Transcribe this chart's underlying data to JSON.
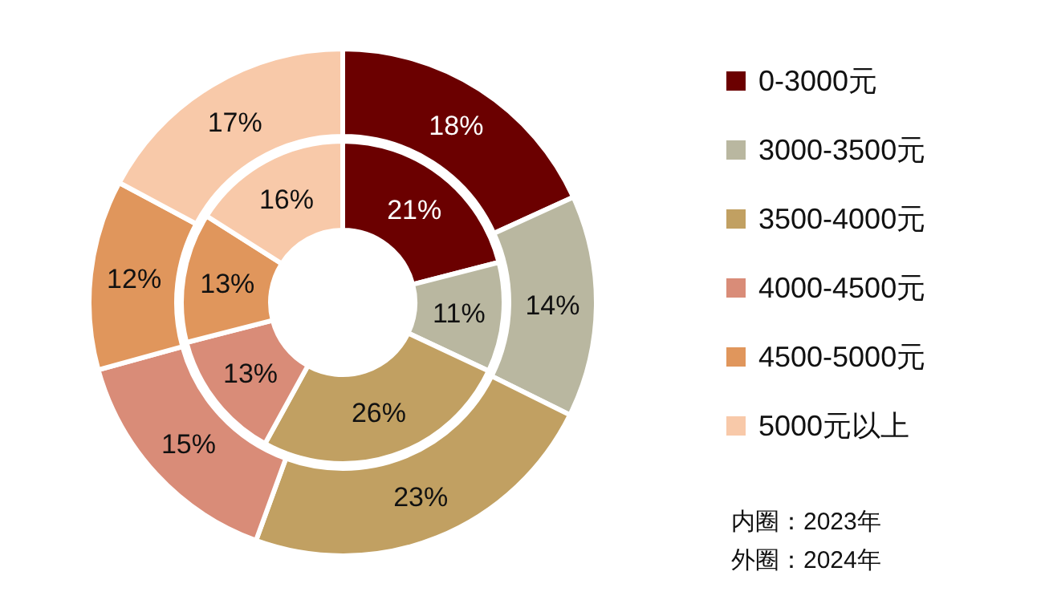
{
  "chart_data": {
    "type": "donut",
    "categories": [
      "0-3000元",
      "3000-3500元",
      "3500-4000元",
      "4000-4500元",
      "4500-5000元",
      "5000元以上"
    ],
    "colors": [
      "#6b0000",
      "#b9b7a0",
      "#c1a062",
      "#d98c78",
      "#e0965c",
      "#f8c9a9"
    ],
    "series": [
      {
        "values": [
          21,
          11,
          26,
          13,
          13,
          16
        ],
        "value_labels": [
          "21%",
          "11%",
          "26%",
          "13%",
          "13%",
          "16%"
        ]
      },
      {
        "values": [
          18,
          14,
          23,
          15,
          12,
          17
        ],
        "value_labels": [
          "18%",
          "14%",
          "23%",
          "15%",
          "12%",
          "17%"
        ]
      }
    ],
    "legend": "right",
    "annotations": [
      "内圈：2023年",
      "外圈：2024年"
    ]
  }
}
